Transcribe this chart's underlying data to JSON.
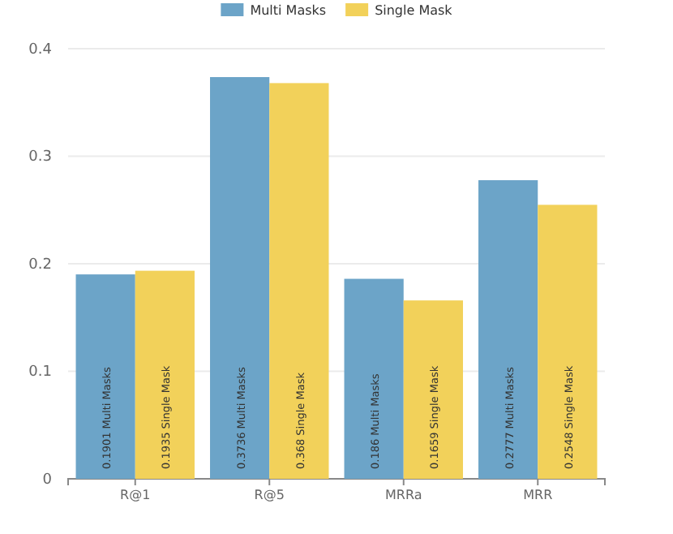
{
  "chart_data": {
    "type": "bar",
    "categories": [
      "R@1",
      "R@5",
      "MRRa",
      "MRR"
    ],
    "series": [
      {
        "name": "Multi Masks",
        "color": "#6ca4c8",
        "values": [
          0.1901,
          0.3736,
          0.186,
          0.2777
        ],
        "value_labels": [
          "0.1901 Multi Masks",
          "0.3736 Multi Masks",
          "0.186 Multi Masks",
          "0.2777 Multi Masks"
        ]
      },
      {
        "name": "Single Mask",
        "color": "#f2d15a",
        "values": [
          0.1935,
          0.368,
          0.1659,
          0.2548
        ],
        "value_labels": [
          "0.1935 Single Mask",
          "0.368 Single Mask",
          "0.1659 Single Mask",
          "0.2548 Single Mask"
        ]
      }
    ],
    "ylim": [
      0,
      0.4
    ],
    "yticks": [
      0,
      0.1,
      0.2,
      0.3,
      0.4
    ],
    "grid": "y",
    "legend": "top"
  }
}
